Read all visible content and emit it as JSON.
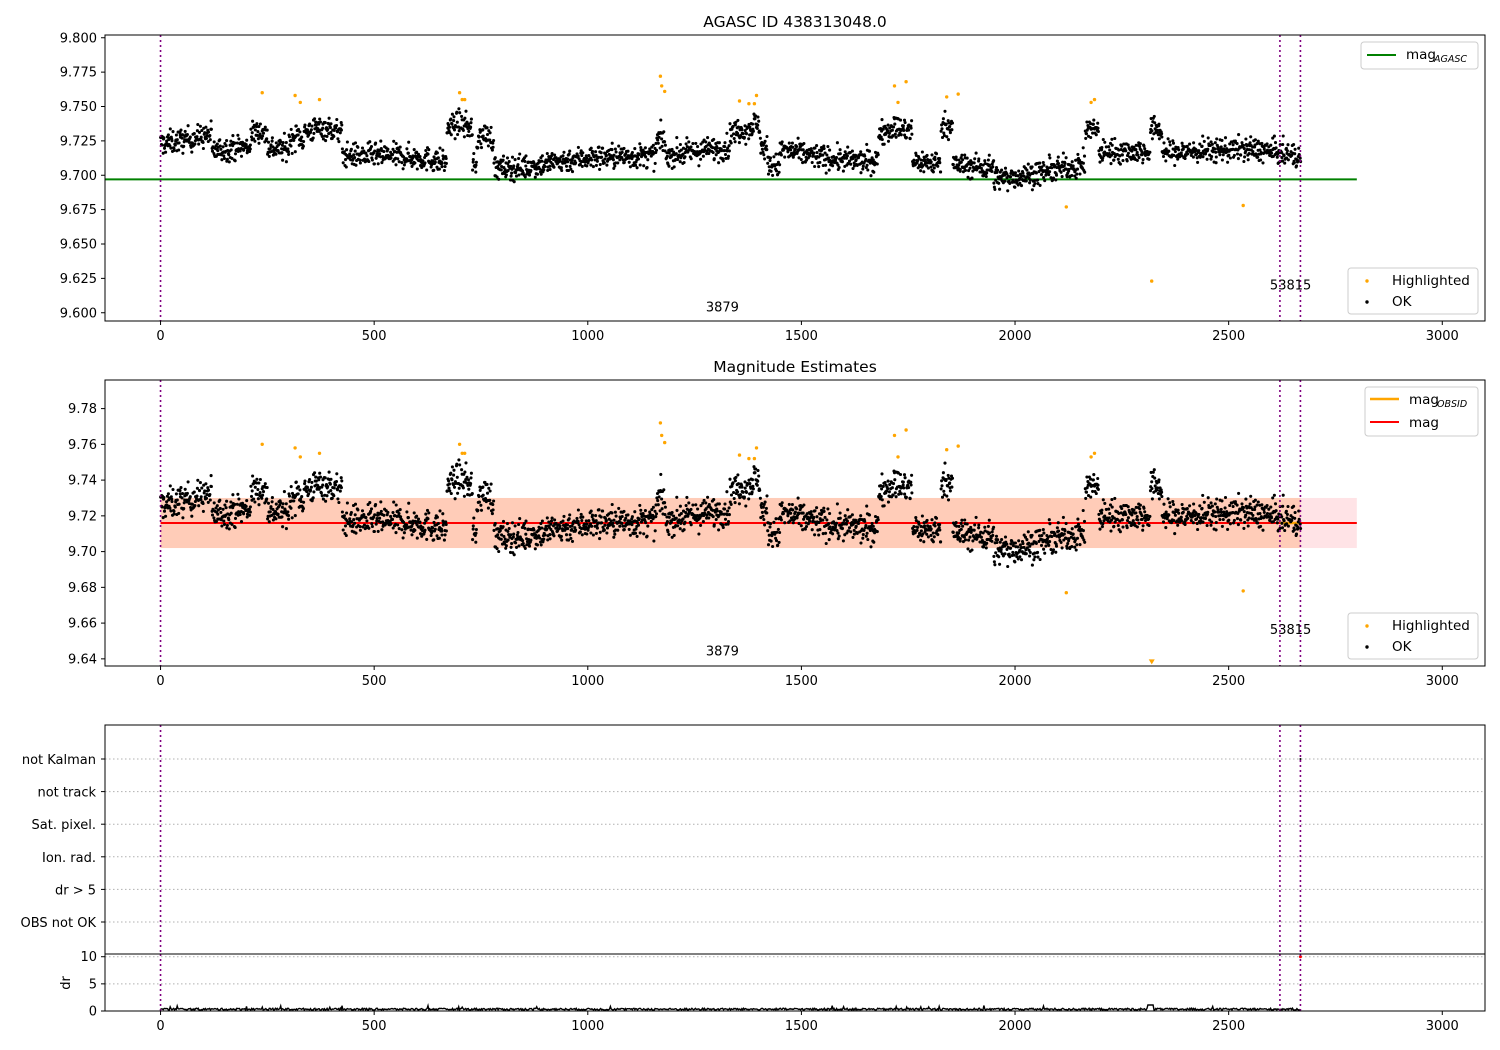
{
  "chart_data": [
    {
      "type": "scatter",
      "title": "AGASC ID 438313048.0",
      "xlim": [
        -130,
        3100
      ],
      "ylim": [
        9.594,
        9.802
      ],
      "x_ticks": [
        "0",
        "500",
        "1000",
        "1500",
        "2000",
        "2500",
        "3000"
      ],
      "x_tick_values": [
        0,
        500,
        1000,
        1500,
        2000,
        2500,
        3000
      ],
      "y_ticks": [
        "9.600",
        "9.625",
        "9.650",
        "9.675",
        "9.700",
        "9.725",
        "9.750",
        "9.775",
        "9.800"
      ],
      "y_tick_values": [
        9.6,
        9.625,
        9.65,
        9.675,
        9.7,
        9.725,
        9.75,
        9.775,
        9.8
      ],
      "reference_line": {
        "label": "mag",
        "subscript": "AGASC",
        "y": 9.697,
        "x_range": [
          0,
          2800
        ],
        "color": "#008000"
      },
      "vlines": [
        0,
        2620,
        2668
      ],
      "vline_color": "#800080",
      "annotations": [
        {
          "text": "3879",
          "x": 1315,
          "y": 9.601
        },
        {
          "text": "53815",
          "x": 2645,
          "y": 9.617
        }
      ],
      "series": [
        {
          "name": "Highlighted",
          "color": "#ffa500",
          "x": [
            238,
            315,
            327,
            372,
            700,
            706,
            712,
            1170,
            1173,
            1180,
            1355,
            1377,
            1390,
            1395,
            1718,
            1726,
            1745,
            1840,
            1867,
            2120,
            2178,
            2186,
            2320,
            2534
          ],
          "y": [
            9.76,
            9.758,
            9.753,
            9.755,
            9.76,
            9.755,
            9.755,
            9.772,
            9.765,
            9.761,
            9.754,
            9.752,
            9.752,
            9.758,
            9.765,
            9.753,
            9.768,
            9.757,
            9.759,
            9.677,
            9.753,
            9.755,
            9.623,
            9.678
          ]
        },
        {
          "name": "OK",
          "color": "#000000",
          "x_range": [
            0,
            2668
          ],
          "count": 2660
        }
      ],
      "legend_top": "top-right",
      "legend_bottom": "bottom-right"
    },
    {
      "type": "scatter",
      "title": "Magnitude Estimates",
      "xlim": [
        -130,
        3100
      ],
      "ylim": [
        9.636,
        9.796
      ],
      "x_ticks": [
        "0",
        "500",
        "1000",
        "1500",
        "2000",
        "2500",
        "3000"
      ],
      "x_tick_values": [
        0,
        500,
        1000,
        1500,
        2000,
        2500,
        3000
      ],
      "y_ticks": [
        "9.64",
        "9.66",
        "9.68",
        "9.70",
        "9.72",
        "9.74",
        "9.76",
        "9.78"
      ],
      "y_tick_values": [
        9.64,
        9.66,
        9.68,
        9.7,
        9.72,
        9.74,
        9.76,
        9.78
      ],
      "mag_line": {
        "label": "mag",
        "y": 9.716,
        "band": [
          9.702,
          9.73
        ],
        "x_range": [
          0,
          2800
        ],
        "color": "#ff0000"
      },
      "obsid_line": {
        "label": "mag",
        "subscript": "OBSID",
        "color": "#ffa500"
      },
      "vlines": [
        0,
        2620,
        2668
      ],
      "annotations": [
        {
          "text": "3879",
          "x": 1315,
          "y": 9.642
        },
        {
          "text": "53815",
          "x": 2645,
          "y": 9.654
        }
      ],
      "series": [
        {
          "name": "Highlighted",
          "color": "#ffa500",
          "x": [
            238,
            315,
            327,
            372,
            700,
            706,
            712,
            1170,
            1173,
            1180,
            1355,
            1377,
            1390,
            1395,
            1718,
            1726,
            1745,
            1840,
            1867,
            2120,
            2178,
            2186,
            2534
          ],
          "y": [
            9.76,
            9.758,
            9.753,
            9.755,
            9.76,
            9.755,
            9.755,
            9.772,
            9.765,
            9.761,
            9.754,
            9.752,
            9.752,
            9.758,
            9.765,
            9.753,
            9.768,
            9.757,
            9.759,
            9.677,
            9.753,
            9.755,
            9.678
          ]
        },
        {
          "name": "OK",
          "color": "#000000",
          "x_range": [
            0,
            2668
          ],
          "count": 2660
        }
      ],
      "offscale_marker": {
        "x": 2320,
        "y": 9.638,
        "color": "#ffa500"
      },
      "legend_top": "top-right",
      "legend_bottom": "bottom-right"
    },
    {
      "type": "table",
      "flag_labels": [
        "not Kalman",
        "not track",
        "Sat. pixel.",
        "Ion. rad.",
        "dr > 5",
        "OBS not OK"
      ],
      "xlim": [
        -130,
        3100
      ],
      "vlines": [
        0,
        2620,
        2668
      ]
    },
    {
      "type": "line",
      "ylabel": "dr",
      "xlim": [
        -130,
        3100
      ],
      "ylim": [
        0,
        10.5
      ],
      "x_ticks": [
        "0",
        "500",
        "1000",
        "1500",
        "2000",
        "2500",
        "3000"
      ],
      "x_tick_values": [
        0,
        500,
        1000,
        1500,
        2000,
        2500,
        3000
      ],
      "y_ticks": [
        "0",
        "5",
        "10"
      ],
      "y_tick_values": [
        0,
        5,
        10
      ],
      "series": [
        {
          "name": "dr",
          "x_range": [
            0,
            2668
          ],
          "typical": 0.3
        }
      ],
      "vlines": [
        0,
        2620,
        2668
      ]
    }
  ],
  "legend": {
    "highlighted_label": "Highlighted",
    "ok_label": "OK",
    "agasc_label": "mag",
    "agasc_sub": "AGASC",
    "obsid_label": "mag",
    "obsid_sub": "OBSID",
    "mag_label": "mag"
  },
  "colors": {
    "ok": "#000000",
    "highlighted": "#ffa500",
    "agasc": "#008000",
    "mag": "#ff0000",
    "band": "#ff8c5a",
    "vline": "#800080"
  }
}
